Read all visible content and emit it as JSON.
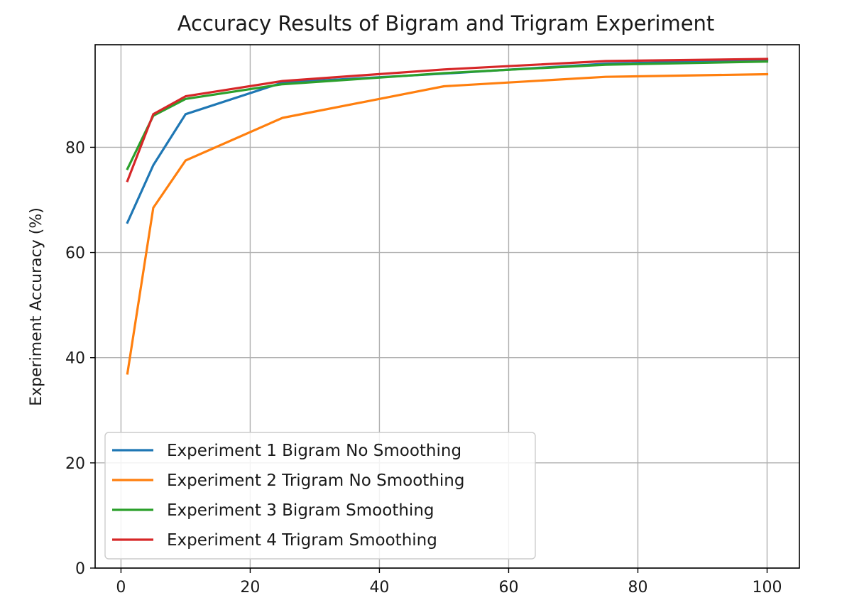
{
  "chart_data": {
    "type": "line",
    "title": "Accuracy Results of Bigram and Trigram Experiment",
    "xlabel": "",
    "ylabel": "Experiment Accuracy (%)",
    "xlim": [
      -4,
      105
    ],
    "ylim": [
      0,
      99.5
    ],
    "x_ticks": [
      0,
      20,
      40,
      60,
      80,
      100
    ],
    "y_ticks": [
      0,
      20,
      40,
      60,
      80
    ],
    "grid": true,
    "legend_position": "lower-left",
    "series": [
      {
        "name": "Experiment 1 Bigram No Smoothing",
        "color": "#1f77b4",
        "x": [
          1,
          5,
          10,
          25,
          50,
          75,
          100
        ],
        "y": [
          65.7,
          76.6,
          86.3,
          92.3,
          94.0,
          95.9,
          96.6
        ]
      },
      {
        "name": "Experiment 2 Trigram No Smoothing",
        "color": "#ff7f0e",
        "x": [
          1,
          5,
          10,
          25,
          50,
          75,
          100
        ],
        "y": [
          37.0,
          68.5,
          77.5,
          85.6,
          91.6,
          93.4,
          93.9
        ]
      },
      {
        "name": "Experiment 3 Bigram Smoothing",
        "color": "#2ca02c",
        "x": [
          1,
          5,
          10,
          25,
          50,
          75,
          100
        ],
        "y": [
          75.9,
          86.0,
          89.2,
          92.0,
          94.1,
          95.7,
          96.3
        ]
      },
      {
        "name": "Experiment 4 Trigram Smoothing",
        "color": "#d62728",
        "x": [
          1,
          5,
          10,
          25,
          50,
          75,
          100
        ],
        "y": [
          73.6,
          86.3,
          89.7,
          92.6,
          94.8,
          96.4,
          96.8
        ]
      }
    ]
  }
}
